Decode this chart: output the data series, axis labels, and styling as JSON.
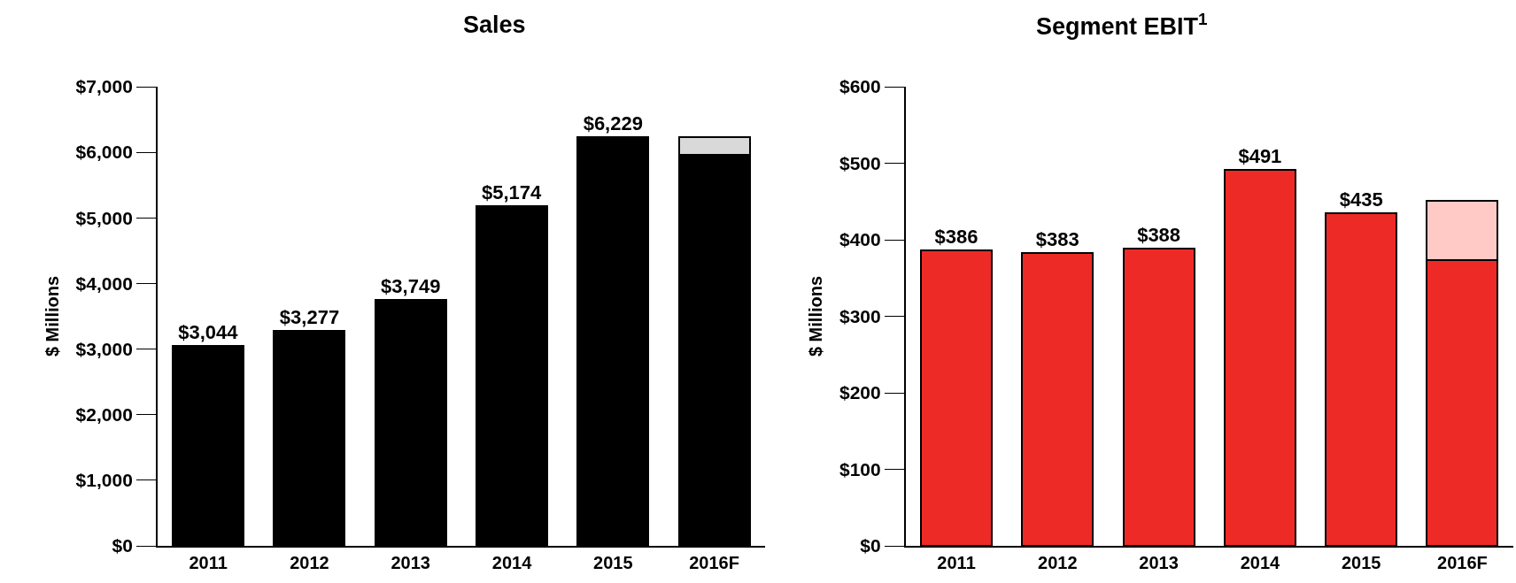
{
  "chart_data": [
    {
      "type": "bar",
      "title": "Sales",
      "ylabel": "$ Millions",
      "categories": [
        "2011",
        "2012",
        "2013",
        "2014",
        "2015",
        "2016F"
      ],
      "series": [
        {
          "color": "#000000",
          "values": [
            3044,
            3277,
            3749,
            5174,
            6229,
            5960
          ],
          "value_labels": [
            "$3,044",
            "$3,277",
            "$3,749",
            "$5,174",
            "$6,229",
            null
          ]
        },
        {
          "color": "#d9d9d9",
          "values": [
            null,
            null,
            null,
            null,
            null,
            270
          ]
        }
      ],
      "ylim": [
        0,
        7000
      ],
      "yticks": [
        {
          "value": 0,
          "label": "$0"
        },
        {
          "value": 1000,
          "label": "$1,000"
        },
        {
          "value": 2000,
          "label": "$2,000"
        },
        {
          "value": 3000,
          "label": "$3,000"
        },
        {
          "value": 4000,
          "label": "$4,000"
        },
        {
          "value": 5000,
          "label": "$5,000"
        },
        {
          "value": 6000,
          "label": "$6,000"
        },
        {
          "value": 7000,
          "label": "$7,000"
        }
      ],
      "stacked": true
    },
    {
      "type": "bar",
      "title": "Segment EBIT$^{1}$",
      "ylabel": "$ Millions",
      "categories": [
        "2011",
        "2012",
        "2013",
        "2014",
        "2015",
        "2016F"
      ],
      "series": [
        {
          "color": "#ee2a27",
          "values": [
            386,
            383,
            388,
            491,
            435,
            373
          ],
          "value_labels": [
            "$386",
            "$383",
            "$388",
            "$491",
            "$435",
            null
          ]
        },
        {
          "color": "#ffc9c6",
          "values": [
            null,
            null,
            null,
            null,
            null,
            78
          ]
        }
      ],
      "ylim": [
        0,
        600
      ],
      "yticks": [
        {
          "value": 0,
          "label": "$0"
        },
        {
          "value": 100,
          "label": "$100"
        },
        {
          "value": 200,
          "label": "$200"
        },
        {
          "value": 300,
          "label": "$300"
        },
        {
          "value": 400,
          "label": "$400"
        },
        {
          "value": 500,
          "label": "$500"
        },
        {
          "value": 600,
          "label": "$600"
        }
      ],
      "stacked": true
    }
  ]
}
